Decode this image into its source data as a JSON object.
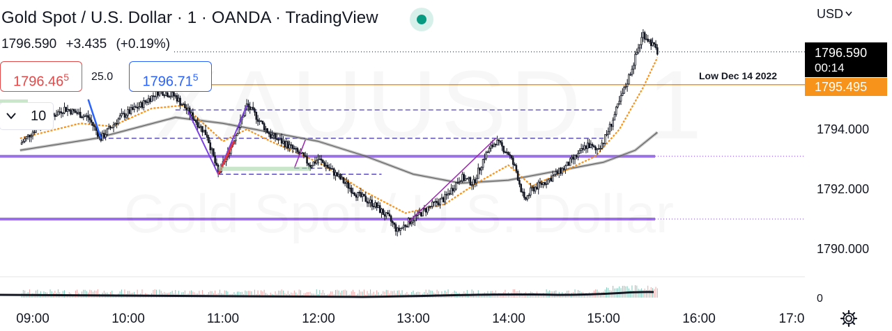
{
  "header": {
    "title": "Gold Spot / U.S. Dollar · 1 · OANDA · TradingView",
    "last": "1796.590",
    "change": "+3.435",
    "change_pct": "(+0.19%)"
  },
  "watermark": {
    "symbol": "XAUUSD, 1",
    "description": "Gold Spot / U.S. Dollar"
  },
  "order_panel": {
    "sell_main": "1796.46",
    "sell_sup": "5",
    "spread": "25.0",
    "buy_main": "1796.71",
    "buy_sup": "5",
    "quantity": "10",
    "quantity_icon": "chevron-down-icon"
  },
  "price_scale": {
    "currency": "USD",
    "currency_icon": "chevron-down-icon",
    "last_price": "1796.590",
    "countdown": "00:14",
    "low_label": "Low Dec 14 2022",
    "low_value": "1795.495",
    "ticks": [
      "1794.000",
      "1792.000",
      "1790.000"
    ],
    "volume_zero": "0",
    "settings_icon": "gear-icon"
  },
  "time_axis": [
    "09:00",
    "10:00",
    "11:00",
    "12:00",
    "13:00",
    "14:00",
    "15:00",
    "16:00",
    "17:0"
  ],
  "colors": {
    "up": "#131722",
    "down": "#131722",
    "ema": "#f7931a",
    "ma": "#8a8a8a",
    "level": "#7b3fe4",
    "dashed": "#3b2ea8",
    "last": "#000000",
    "low": "#f7931a",
    "live": "#089981"
  },
  "chart_data": {
    "type": "candlestick",
    "title": "",
    "interval": "1",
    "ylim": [
      1789.0,
      1797.4
    ],
    "x_range": [
      "08:52",
      "17:00"
    ],
    "last_price": 1796.59,
    "horizontal_levels": [
      {
        "label": "Low Dec 14 2022",
        "value": 1795.495,
        "color": "#f7931a"
      },
      {
        "value": 1793.1,
        "color": "#7b3fe4",
        "style": "solid-thick"
      },
      {
        "value": 1791.0,
        "color": "#7b3fe4",
        "style": "solid-thick"
      }
    ],
    "close_path": [
      [
        "08:52",
        1793.5
      ],
      [
        "09:05",
        1794.2
      ],
      [
        "09:20",
        1794.7
      ],
      [
        "09:35",
        1794.4
      ],
      [
        "09:43",
        1793.7
      ],
      [
        "09:55",
        1794.4
      ],
      [
        "10:08",
        1794.8
      ],
      [
        "10:20",
        1795.3
      ],
      [
        "10:30",
        1795.1
      ],
      [
        "10:38",
        1794.6
      ],
      [
        "10:50",
        1793.8
      ],
      [
        "10:57",
        1792.5
      ],
      [
        "11:04",
        1793.3
      ],
      [
        "11:10",
        1794.1
      ],
      [
        "11:15",
        1794.8
      ],
      [
        "11:20",
        1794.5
      ],
      [
        "11:30",
        1793.8
      ],
      [
        "11:40",
        1793.5
      ],
      [
        "11:50",
        1793.1
      ],
      [
        "11:55",
        1792.8
      ],
      [
        "12:00",
        1793.0
      ],
      [
        "12:05",
        1792.8
      ],
      [
        "12:15",
        1792.3
      ],
      [
        "12:25",
        1791.8
      ],
      [
        "12:35",
        1791.5
      ],
      [
        "12:45",
        1791.0
      ],
      [
        "12:50",
        1790.6
      ],
      [
        "12:57",
        1790.9
      ],
      [
        "13:10",
        1791.4
      ],
      [
        "13:20",
        1791.7
      ],
      [
        "13:30",
        1792.4
      ],
      [
        "13:38",
        1792.2
      ],
      [
        "13:45",
        1793.1
      ],
      [
        "13:52",
        1793.6
      ],
      [
        "14:00",
        1793.2
      ],
      [
        "14:05",
        1792.6
      ],
      [
        "14:10",
        1791.6
      ],
      [
        "14:15",
        1792.0
      ],
      [
        "14:25",
        1792.3
      ],
      [
        "14:35",
        1792.7
      ],
      [
        "14:45",
        1793.2
      ],
      [
        "14:50",
        1793.5
      ],
      [
        "14:55",
        1793.3
      ],
      [
        "15:00",
        1793.6
      ],
      [
        "15:05",
        1794.2
      ],
      [
        "15:10",
        1794.9
      ],
      [
        "15:15",
        1795.6
      ],
      [
        "15:20",
        1796.4
      ],
      [
        "15:25",
        1797.2
      ],
      [
        "15:30",
        1796.9
      ],
      [
        "15:34",
        1796.59
      ]
    ],
    "ema_path": [
      [
        "08:52",
        1793.7
      ],
      [
        "09:30",
        1794.2
      ],
      [
        "09:50",
        1794.1
      ],
      [
        "10:15",
        1794.7
      ],
      [
        "10:35",
        1794.8
      ],
      [
        "11:00",
        1793.6
      ],
      [
        "11:15",
        1794.0
      ],
      [
        "11:30",
        1793.6
      ],
      [
        "12:00",
        1792.9
      ],
      [
        "12:30",
        1791.9
      ],
      [
        "12:55",
        1791.2
      ],
      [
        "13:20",
        1791.5
      ],
      [
        "13:40",
        1792.2
      ],
      [
        "14:00",
        1792.8
      ],
      [
        "14:15",
        1792.1
      ],
      [
        "14:35",
        1792.6
      ],
      [
        "14:55",
        1793.1
      ],
      [
        "15:10",
        1794.0
      ],
      [
        "15:25",
        1795.4
      ],
      [
        "15:34",
        1796.4
      ]
    ],
    "ma_path": [
      [
        "08:52",
        1793.3
      ],
      [
        "09:40",
        1793.7
      ],
      [
        "10:30",
        1794.4
      ],
      [
        "11:00",
        1794.2
      ],
      [
        "11:30",
        1793.9
      ],
      [
        "12:00",
        1793.6
      ],
      [
        "12:30",
        1793.1
      ],
      [
        "13:00",
        1792.5
      ],
      [
        "13:30",
        1792.2
      ],
      [
        "14:00",
        1792.3
      ],
      [
        "14:30",
        1792.6
      ],
      [
        "15:00",
        1792.9
      ],
      [
        "15:20",
        1793.3
      ],
      [
        "15:34",
        1793.9
      ]
    ]
  }
}
